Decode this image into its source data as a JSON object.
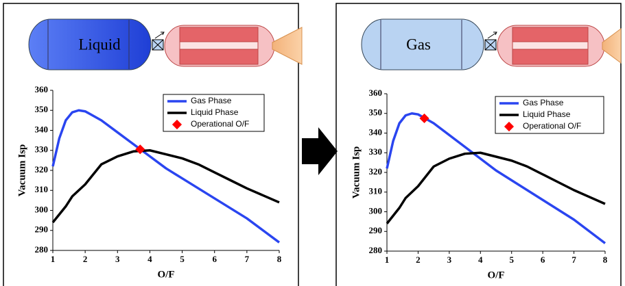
{
  "chart_data": [
    {
      "type": "line",
      "diagram_label": "Liquid",
      "xlabel": "O/F",
      "ylabel": "Vacuum Isp",
      "x": [
        1,
        1.2,
        1.4,
        1.6,
        1.8,
        2,
        2.5,
        3,
        3.5,
        4,
        4.5,
        5,
        5.5,
        6,
        6.5,
        7,
        7.5,
        8
      ],
      "series": [
        {
          "name": "Gas Phase",
          "color": "#2a45f0",
          "values": [
            322,
            336,
            345,
            349,
            350,
            349.5,
            345,
            339,
            333,
            327,
            321,
            316,
            311,
            306,
            301,
            296,
            290,
            284
          ]
        },
        {
          "name": "Liquid Phase",
          "color": "#000000",
          "values": [
            294,
            298,
            302,
            307,
            310,
            313,
            323,
            327,
            329.5,
            330,
            328,
            326,
            323,
            319,
            315,
            311,
            307.5,
            304
          ]
        }
      ],
      "marker": {
        "name": "Operational O/F",
        "color": "#ff0000",
        "x": 3.7,
        "y": 330.5
      },
      "xlim": [
        1,
        8
      ],
      "xticks": [
        1,
        2,
        3,
        4,
        5,
        6,
        7,
        8
      ],
      "ylim": [
        280,
        360
      ],
      "yticks": [
        280,
        290,
        300,
        310,
        320,
        330,
        340,
        350,
        360
      ]
    },
    {
      "type": "line",
      "diagram_label": "Gas",
      "xlabel": "O/F",
      "ylabel": "Vacuum Isp",
      "x": [
        1,
        1.2,
        1.4,
        1.6,
        1.8,
        2,
        2.5,
        3,
        3.5,
        4,
        4.5,
        5,
        5.5,
        6,
        6.5,
        7,
        7.5,
        8
      ],
      "series": [
        {
          "name": "Gas Phase",
          "color": "#2a45f0",
          "values": [
            322,
            336,
            345,
            349,
            350,
            349.5,
            345,
            339,
            333,
            327,
            321,
            316,
            311,
            306,
            301,
            296,
            290,
            284
          ]
        },
        {
          "name": "Liquid Phase",
          "color": "#000000",
          "values": [
            294,
            298,
            302,
            307,
            310,
            313,
            323,
            327,
            329.5,
            330,
            328,
            326,
            323,
            319,
            315,
            311,
            307.5,
            304
          ]
        }
      ],
      "marker": {
        "name": "Operational O/F",
        "color": "#ff0000",
        "x": 2.2,
        "y": 347.5
      },
      "xlim": [
        1,
        8
      ],
      "xticks": [
        1,
        2,
        3,
        4,
        5,
        6,
        7,
        8
      ],
      "ylim": [
        280,
        360
      ],
      "yticks": [
        280,
        290,
        300,
        310,
        320,
        330,
        340,
        350,
        360
      ]
    }
  ]
}
